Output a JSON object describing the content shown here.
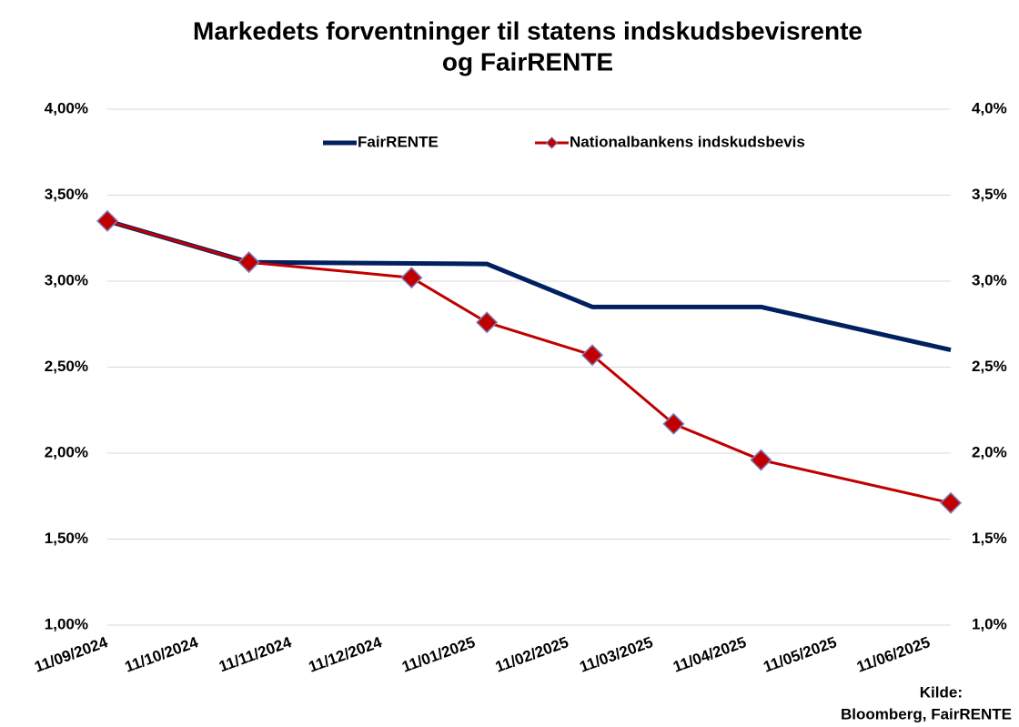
{
  "chart_data": {
    "type": "line",
    "title": [
      "Markedets forventninger til statens indskudsbevisrente",
      "og FairRENTE"
    ],
    "source": [
      "Kilde:",
      "Bloomberg, FairRENTE"
    ],
    "series": [
      {
        "name": "FairRENTE",
        "color": "#002060",
        "marker": "none",
        "x": [
          "11/09/2024",
          "28/10/2024",
          "15/01/2025",
          "19/02/2025",
          "16/04/2025",
          "18/06/2025"
        ],
        "values": [
          3.35,
          3.11,
          3.1,
          2.85,
          2.85,
          2.6
        ]
      },
      {
        "name": "Nationalbankens indskudsbevis",
        "color": "#c00000",
        "marker": "diamond",
        "x": [
          "11/09/2024",
          "28/10/2024",
          "21/12/2024",
          "15/01/2025",
          "19/02/2025",
          "18/03/2025",
          "16/04/2025",
          "18/06/2025"
        ],
        "values": [
          3.35,
          3.11,
          3.02,
          2.76,
          2.57,
          2.17,
          1.96,
          1.71
        ]
      }
    ],
    "xlim": [
      "11/09/2024",
      "18/06/2025"
    ],
    "xticks": [
      "11/09/2024",
      "11/10/2024",
      "11/11/2024",
      "11/12/2024",
      "11/01/2025",
      "11/02/2025",
      "11/03/2025",
      "11/04/2025",
      "11/05/2025",
      "11/06/2025"
    ],
    "ylim": [
      1,
      4
    ],
    "yticks": [
      {
        "value": 1,
        "label": "1,00%"
      },
      {
        "value": 1.5,
        "label": "1,50%"
      },
      {
        "value": 2,
        "label": "2,00%"
      },
      {
        "value": 2.5,
        "label": "2,50%"
      },
      {
        "value": 3,
        "label": "3,00%"
      },
      {
        "value": 3.5,
        "label": "3,50%"
      },
      {
        "value": 4,
        "label": "4,00%"
      }
    ],
    "y2lim": [
      1,
      4
    ],
    "y2ticks": [
      {
        "value": 1,
        "label": "1,0%"
      },
      {
        "value": 1.5,
        "label": "1,5%"
      },
      {
        "value": 2,
        "label": "2,0%"
      },
      {
        "value": 2.5,
        "label": "2,5%"
      },
      {
        "value": 3,
        "label": "3,0%"
      },
      {
        "value": 3.5,
        "label": "3,5%"
      },
      {
        "value": 4,
        "label": "4,0%"
      }
    ],
    "grid": true,
    "legend": "top"
  }
}
